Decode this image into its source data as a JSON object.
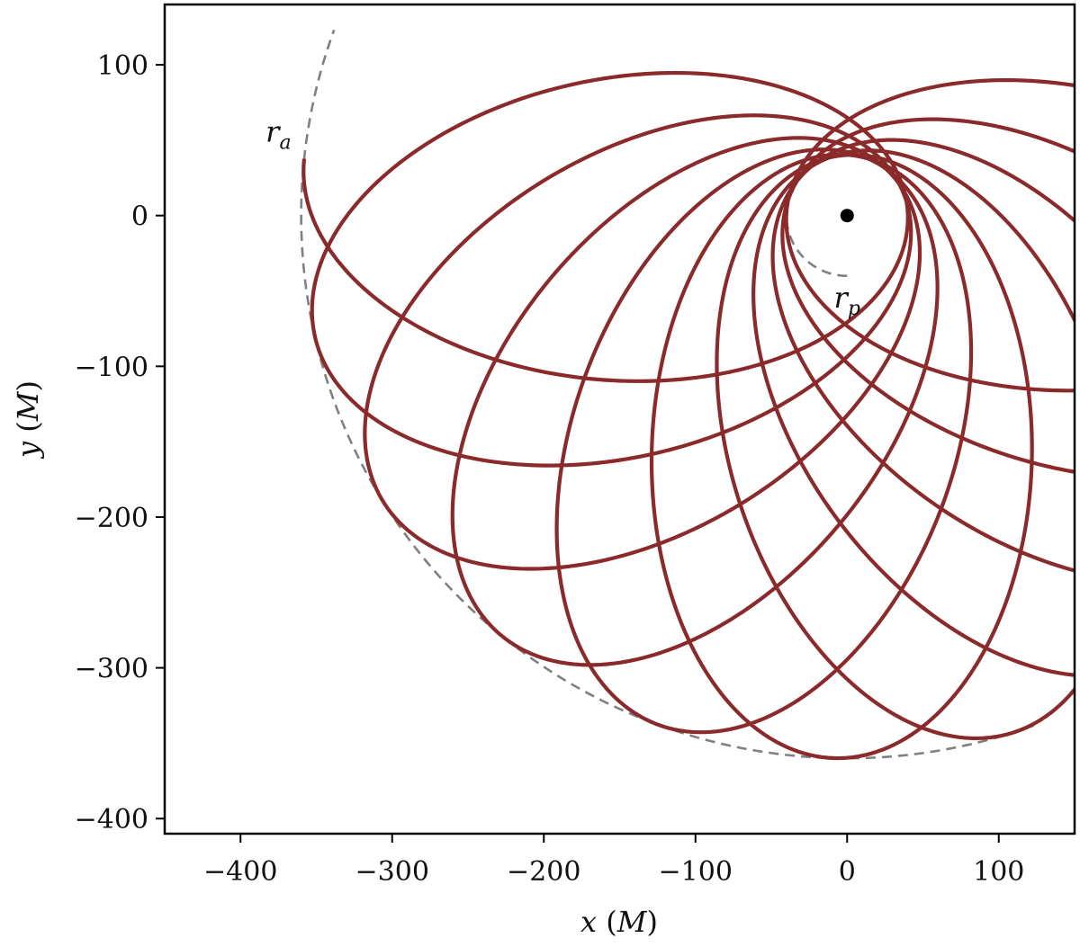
{
  "chart_data": {
    "type": "line",
    "title": "",
    "xlabel": "x (M)",
    "ylabel": "y (M)",
    "xlim": [
      -450,
      150
    ],
    "ylim": [
      -410,
      140
    ],
    "xticks": [
      -400,
      -300,
      -200,
      -100,
      0,
      100
    ],
    "yticks": [
      100,
      0,
      -100,
      -200,
      -300,
      -400
    ],
    "xtick_labels": [
      "−400",
      "−300",
      "−200",
      "−100",
      "0",
      "100"
    ],
    "ytick_labels": [
      "100",
      "0",
      "−100",
      "−200",
      "−300",
      "−400"
    ],
    "grid": false,
    "legend": "none",
    "central_body": {
      "x": 0,
      "y": 0
    },
    "orbit": {
      "color": "#8b2a2a",
      "pericenter_radius": 40,
      "apocenter_radius": 360,
      "initial_apocenter_angle_deg": 174,
      "precession_per_orbit_deg": -18,
      "orbits": 10.6
    },
    "reference_circles": [
      {
        "label": "r_a",
        "label_text": "r",
        "label_sub": "a",
        "radius": 360,
        "center": [
          0,
          0
        ],
        "style": "dashed",
        "color": "#808080",
        "shown_arc_deg": [
          -20,
          110
        ]
      },
      {
        "label": "r_p",
        "label_text": "r",
        "label_sub": "p",
        "radius": 40,
        "center": [
          0,
          0
        ],
        "style": "dashed",
        "color": "#808080",
        "shown_arc_deg": [
          0,
          180
        ]
      }
    ],
    "annotations": [
      {
        "text": "r_a",
        "x": -375,
        "y": 55
      },
      {
        "text": "r_p",
        "x": 0,
        "y": -55
      }
    ]
  },
  "axis_text": {
    "x_var": "x",
    "x_unit": "M",
    "y_var": "y",
    "y_unit": "M"
  }
}
